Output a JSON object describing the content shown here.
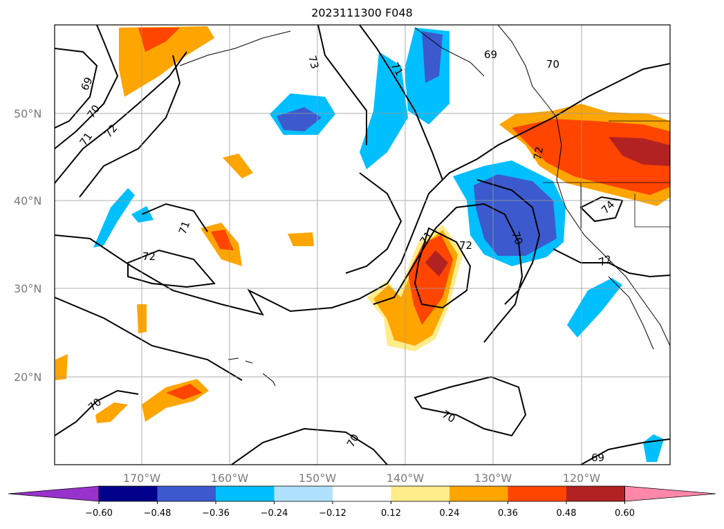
{
  "title": "2023111300 F048",
  "map": {
    "lat_labels": [
      "50°N",
      "40°N",
      "30°N",
      "20°N"
    ],
    "lon_labels": [
      "170°W",
      "160°W",
      "150°W",
      "140°W",
      "130°W",
      "120°W"
    ],
    "contour_labels": [
      "69",
      "70",
      "71",
      "72",
      "71",
      "72",
      "73",
      "71",
      "69",
      "70",
      "72",
      "71",
      "72",
      "70",
      "69",
      "71",
      "74",
      "72",
      "70",
      "70",
      "70"
    ]
  },
  "colorbar": {
    "ticks": [
      "−0.60",
      "−0.48",
      "−0.36",
      "−0.24",
      "−0.12",
      "0.12",
      "0.24",
      "0.36",
      "0.48",
      "0.60"
    ],
    "colors": [
      "#9932cc",
      "#00008b",
      "#3c5acd",
      "#00bfff",
      "#b0e2ff",
      "#ffffff",
      "#ffec8b",
      "#ffa500",
      "#ff4500",
      "#b22222",
      "#ff88aa"
    ]
  }
}
